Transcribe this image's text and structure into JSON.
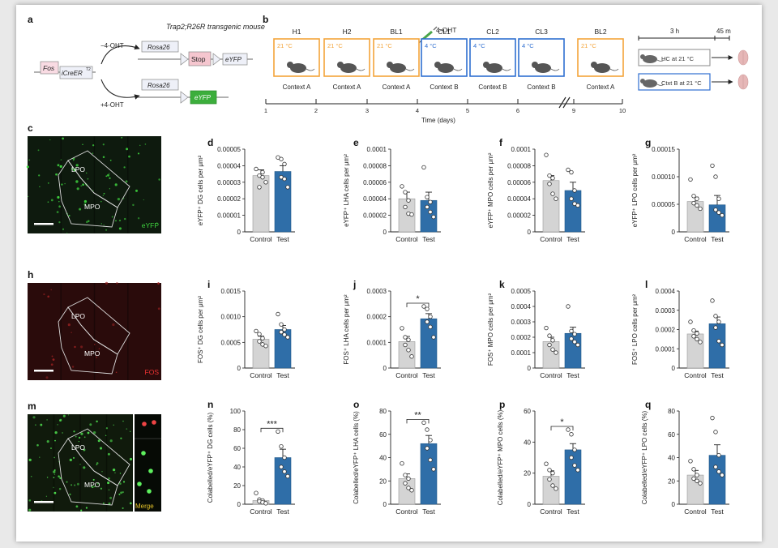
{
  "panel_letters": {
    "a": "a",
    "b": "b",
    "c": "c",
    "d": "d",
    "e": "e",
    "f": "f",
    "g": "g",
    "h": "h",
    "i": "i",
    "j": "j",
    "k": "k",
    "l": "l",
    "m": "m",
    "n": "n",
    "o": "o",
    "p": "p",
    "q": "q"
  },
  "colors": {
    "control": "#d4d4d4",
    "test": "#2f6ea8",
    "warm": "#f3a43a",
    "cold": "#2f6fd0",
    "efyp": "#3cae3c",
    "stop": "#f5c6cf",
    "fos": "#f9dbe3",
    "construct": "#eef0f8"
  },
  "panel_a": {
    "title": "Trap2;R26R transgenic mouse",
    "fos": "Fos",
    "icreer": "iCreER",
    "icreer_sup": "T2",
    "minus": "−4-OHT",
    "plus": "+4-OHT",
    "rosa_top": "Rosa26",
    "rosa_bottom": "Rosa26",
    "stop": "Stop",
    "eyfp_top": "eYFP",
    "eyfp_bottom": "eYFP"
  },
  "panel_b": {
    "drug": "4-OHT",
    "boxes": [
      {
        "name": "H1",
        "temp": "21 °C",
        "kind": "warm"
      },
      {
        "name": "H2",
        "temp": "21 °C",
        "kind": "warm"
      },
      {
        "name": "BL1",
        "temp": "21 °C",
        "kind": "warm"
      },
      {
        "name": "CL1",
        "temp": "4 °C",
        "kind": "cold"
      },
      {
        "name": "CL2",
        "temp": "4 °C",
        "kind": "cold"
      },
      {
        "name": "CL3",
        "temp": "4 °C",
        "kind": "cold"
      },
      {
        "name": "BL2",
        "temp": "21 °C",
        "kind": "warm"
      }
    ],
    "contexts": [
      "Context A",
      "Context A",
      "Context A",
      "Context B",
      "Context B",
      "Context B",
      "Context A"
    ],
    "days": [
      "1",
      "2",
      "3",
      "4",
      "5",
      "6",
      "9",
      "10"
    ],
    "time_label": "Time (days)",
    "dur1": "3 h",
    "dur2": "45 m",
    "hc": "HC at 21 °C",
    "ctxt": "Ctxt B at 21 °C"
  },
  "images": {
    "c": {
      "lpo": "LPO",
      "mpo": "MPO",
      "channel": "eYFP"
    },
    "h": {
      "lpo": "LPO",
      "mpo": "MPO",
      "channel": "FOS"
    },
    "m": {
      "lpo": "LPO",
      "mpo": "MPO",
      "channel": "Merge"
    }
  },
  "chart_data": [
    {
      "panel": "d",
      "type": "bar",
      "categories": [
        "Control",
        "Test"
      ],
      "ylabel": "eYFP⁺ DG cells per μm²",
      "ylim": [
        0,
        5e-05
      ],
      "yticks": [
        "0",
        "0.00001",
        "0.00002",
        "0.00003",
        "0.00004",
        "0.00005"
      ],
      "values": [
        3.4e-05,
        3.65e-05
      ],
      "sem": [
        3.5e-06,
        3.5e-06
      ],
      "points": [
        [
          3.8e-05,
          3.4e-05,
          3.6e-05,
          2.7e-05,
          3.3e-05,
          3e-05
        ],
        [
          4.5e-05,
          4.4e-05,
          4.1e-05,
          3.3e-05,
          3.2e-05,
          2.7e-05
        ]
      ],
      "sig": ""
    },
    {
      "panel": "e",
      "type": "bar",
      "categories": [
        "Control",
        "Test"
      ],
      "ylabel": "eYFP⁺ LHA cells per μm²",
      "ylim": [
        0,
        0.0001
      ],
      "yticks": [
        "0",
        "0.00002",
        "0.00004",
        "0.00006",
        "0.00008",
        "0.0001"
      ],
      "values": [
        4e-05,
        3.8e-05
      ],
      "sem": [
        8e-06,
        1e-05
      ],
      "points": [
        [
          5.5e-05,
          4.8e-05,
          3.8e-05,
          3e-05,
          2.2e-05,
          2.1e-05
        ],
        [
          7.8e-05,
          4.2e-05,
          3.6e-05,
          3e-05,
          2.4e-05,
          1.8e-05
        ]
      ],
      "sig": ""
    },
    {
      "panel": "f",
      "type": "bar",
      "categories": [
        "Control",
        "Test"
      ],
      "ylabel": "eYFP⁺ MPO cells per μm²",
      "ylim": [
        0,
        0.0001
      ],
      "yticks": [
        "0",
        "0.00002",
        "0.00004",
        "0.00006",
        "0.00008",
        "0.0001"
      ],
      "values": [
        6.2e-05,
        5e-05
      ],
      "sem": [
        6e-06,
        1e-05
      ],
      "points": [
        [
          9.3e-05,
          6.8e-05,
          6.5e-05,
          5.8e-05,
          4.6e-05,
          4e-05
        ],
        [
          7.5e-05,
          7.2e-05,
          5e-05,
          4e-05,
          3.4e-05,
          3.2e-05
        ]
      ],
      "sig": ""
    },
    {
      "panel": "g",
      "type": "bar",
      "categories": [
        "Control",
        "Test"
      ],
      "ylabel": "eYFP⁺ LPO cells per μm²",
      "ylim": [
        0,
        0.00015
      ],
      "yticks": [
        "0",
        "0.00005",
        "0.00010",
        "0.00015"
      ],
      "values": [
        5.5e-05,
        4.9e-05
      ],
      "sem": [
        8e-06,
        1.7e-05
      ],
      "points": [
        [
          9.5e-05,
          6.5e-05,
          6e-05,
          5.2e-05,
          4.8e-05,
          4.2e-05
        ],
        [
          0.00012,
          0.0001,
          6e-05,
          4e-05,
          3.5e-05,
          3e-05
        ]
      ],
      "sig": ""
    },
    {
      "panel": "i",
      "type": "bar",
      "categories": [
        "Control",
        "Test"
      ],
      "ylabel": "FOS⁺ DG cells per μm²",
      "ylim": [
        0,
        0.0015
      ],
      "yticks": [
        "0",
        "0.0005",
        "0.0010",
        "0.0015"
      ],
      "values": [
        0.00056,
        0.00075
      ],
      "sem": [
        6e-05,
        8e-05
      ],
      "points": [
        [
          0.00072,
          0.00066,
          0.00058,
          0.00052,
          0.00046,
          0.00043
        ],
        [
          0.00105,
          0.00085,
          0.00075,
          0.0007,
          0.00065,
          0.0006
        ]
      ],
      "sig": ""
    },
    {
      "panel": "j",
      "type": "bar",
      "categories": [
        "Control",
        "Test"
      ],
      "ylabel": "FOS⁺ LHA cells per μm²",
      "ylim": [
        0,
        0.0003
      ],
      "yticks": [
        "0",
        "0.0001",
        "0.0002",
        "0.0003"
      ],
      "values": [
        0.000103,
        0.000192
      ],
      "sem": [
        2e-05,
        2e-05
      ],
      "points": [
        [
          0.000155,
          0.00012,
          0.00011,
          9e-05,
          7e-05,
          4.5e-05
        ],
        [
          0.00024,
          0.00023,
          0.0002,
          0.00018,
          0.00016,
          0.00012
        ]
      ],
      "sig": "*"
    },
    {
      "panel": "k",
      "type": "bar",
      "categories": [
        "Control",
        "Test"
      ],
      "ylabel": "FOS⁺ MPO cells per μm²",
      "ylim": [
        0,
        0.0005
      ],
      "yticks": [
        "0",
        "0.0001",
        "0.0002",
        "0.0003",
        "0.0004",
        "0.0005"
      ],
      "values": [
        0.000172,
        0.000225
      ],
      "sem": [
        2.8e-05,
        4e-05
      ],
      "points": [
        [
          0.00026,
          0.00021,
          0.00018,
          0.00015,
          0.00012,
          0.0001
        ],
        [
          0.0004,
          0.00024,
          0.00022,
          0.00019,
          0.00017,
          0.00015
        ]
      ],
      "sig": ""
    },
    {
      "panel": "l",
      "type": "bar",
      "categories": [
        "Control",
        "Test"
      ],
      "ylabel": "FOS⁺ LPO cells per μm²",
      "ylim": [
        0,
        0.0004
      ],
      "yticks": [
        "0",
        "0.0001",
        "0.0002",
        "0.0003",
        "0.0004"
      ],
      "values": [
        0.000177,
        0.00023
      ],
      "sem": [
        1.5e-05,
        3.5e-05
      ],
      "points": [
        [
          0.00024,
          0.000195,
          0.00018,
          0.000165,
          0.00015,
          0.000135
        ],
        [
          0.00035,
          0.00027,
          0.00024,
          0.00021,
          0.00014,
          0.00012
        ]
      ],
      "sig": ""
    },
    {
      "panel": "n",
      "type": "bar",
      "categories": [
        "Control",
        "Test"
      ],
      "ylabel": "Colabelled/eYFP⁺ DG cells (%)",
      "ylim": [
        0,
        100
      ],
      "yticks": [
        "0",
        "20",
        "40",
        "60",
        "80",
        "100"
      ],
      "values": [
        4,
        50
      ],
      "sem": [
        1.5,
        9
      ],
      "points": [
        [
          12,
          5,
          4,
          3,
          2,
          1
        ],
        [
          78,
          62,
          50,
          40,
          35,
          30
        ]
      ],
      "sig": "***"
    },
    {
      "panel": "o",
      "type": "bar",
      "categories": [
        "Control",
        "Test"
      ],
      "ylabel": "Colabelled/eYFP⁺ LHA cells (%)",
      "ylim": [
        0,
        80
      ],
      "yticks": [
        "0",
        "20",
        "40",
        "60",
        "80"
      ],
      "values": [
        22,
        52
      ],
      "sem": [
        4,
        7
      ],
      "points": [
        [
          35,
          25,
          22,
          18,
          14,
          12
        ],
        [
          70,
          64,
          55,
          48,
          38,
          30
        ]
      ],
      "sig": "**"
    },
    {
      "panel": "p",
      "type": "bar",
      "categories": [
        "Control",
        "Test"
      ],
      "ylabel": "Colabelled/eYFP⁺ MPO cells (%)",
      "ylim": [
        0,
        60
      ],
      "yticks": [
        "0",
        "20",
        "40",
        "60"
      ],
      "values": [
        18,
        35
      ],
      "sem": [
        3.5,
        4
      ],
      "points": [
        [
          26,
          22,
          20,
          16,
          12,
          10
        ],
        [
          48,
          45,
          35,
          30,
          25,
          22
        ]
      ],
      "sig": "*"
    },
    {
      "panel": "q",
      "type": "bar",
      "categories": [
        "Control",
        "Test"
      ],
      "ylabel": "Colabelled/eYFP⁺ LPO cells (%)",
      "ylim": [
        0,
        80
      ],
      "yticks": [
        "0",
        "20",
        "40",
        "60",
        "80"
      ],
      "values": [
        25,
        42
      ],
      "sem": [
        4,
        9
      ],
      "points": [
        [
          37,
          30,
          25,
          22,
          20,
          18
        ],
        [
          74,
          62,
          42,
          32,
          28,
          25
        ]
      ],
      "sig": ""
    }
  ]
}
